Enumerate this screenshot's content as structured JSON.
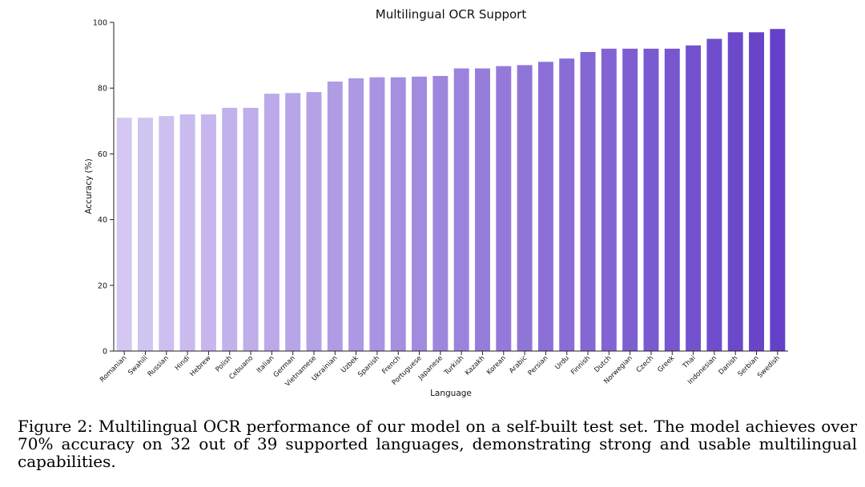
{
  "chart_data": {
    "type": "bar",
    "title": "Multilingual OCR Support",
    "xlabel": "Language",
    "ylabel": "Accuracy (%)",
    "ylim": [
      0,
      100
    ],
    "yticks": [
      0,
      20,
      40,
      60,
      80,
      100
    ],
    "grid": false,
    "legend": "none",
    "categories": [
      "Romanian",
      "Swahili",
      "Russian",
      "Hindi",
      "Hebrew",
      "Polish",
      "Cebuano",
      "Italian",
      "German",
      "Vietnamese",
      "Ukrainian",
      "Uzbek",
      "Spanish",
      "French",
      "Portuguese",
      "Japanese",
      "Turkish",
      "Kazakh",
      "Korean",
      "Arabic",
      "Persian",
      "Urdu",
      "Finnish",
      "Dutch",
      "Norwegian",
      "Czech",
      "Greek",
      "Thai",
      "Indonesian",
      "Danish",
      "Serbian",
      "Swedish"
    ],
    "values": [
      71,
      71,
      71.5,
      72,
      72,
      74,
      74,
      78.3,
      78.5,
      78.8,
      82,
      83,
      83.3,
      83.3,
      83.5,
      83.7,
      86,
      86,
      86.7,
      87,
      88,
      89,
      91,
      92,
      92,
      92,
      92,
      93,
      95,
      97,
      97,
      98
    ],
    "color_start": "#d4c8f2",
    "color_end": "#6540c8"
  },
  "caption": "Figure 2: Multilingual OCR performance of our model on a self-built test set. The model achieves over 70% accuracy on 32 out of 39 supported languages, demonstrating strong and usable multilingual capabilities."
}
